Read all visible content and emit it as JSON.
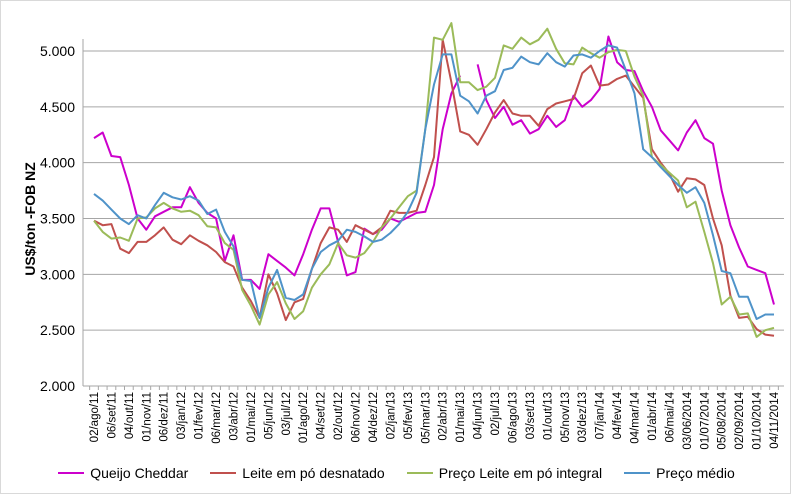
{
  "chart_data": {
    "type": "line",
    "title": "",
    "xlabel": "",
    "ylabel": "US$/ton -FOB NZ",
    "ylim": [
      2000,
      5000
    ],
    "yticks": [
      "2.000",
      "2.500",
      "3.000",
      "3.500",
      "4.000",
      "4.500",
      "5.000"
    ],
    "ytick_values": [
      2000,
      2500,
      3000,
      3500,
      4000,
      4500,
      5000
    ],
    "grid": true,
    "legend_position": "bottom",
    "x_tick_labels": [
      "02/ago/11",
      "06/set/11",
      "04/out/11",
      "01/nov/11",
      "06/dez/11",
      "03/jan/12",
      "01/fev/12",
      "06/mar/12",
      "03/abr/12",
      "01/mai/12",
      "05/jun/12",
      "03/jul/12",
      "01/ago/12",
      "04/set/12",
      "02/out/12",
      "06/nov/12",
      "04/dez/12",
      "02/jan/13",
      "05/fev/13",
      "05/mar/13",
      "02/abr/13",
      "01/mai/13",
      "04/jun/13",
      "02/jul/13",
      "06/ago/13",
      "03/set/13",
      "01/out/13",
      "05/nov/13",
      "03/dez/13",
      "07/jan/14",
      "04/fev/14",
      "04/mar/14",
      "01/abr/14",
      "06/mai/14",
      "03/06/2014",
      "01/07/2014",
      "05/08/2014",
      "02/09/2014",
      "01/10/2014",
      "04/11/2014"
    ],
    "series": [
      {
        "name": "Queijo Cheddar",
        "color": "#cc00cc",
        "values": [
          4220,
          4270,
          4060,
          4050,
          3800,
          3500,
          3400,
          3520,
          3560,
          3600,
          3600,
          3780,
          3640,
          3550,
          3500,
          3120,
          3350,
          2950,
          2950,
          2870,
          3180,
          3120,
          3060,
          2990,
          3180,
          3400,
          3590,
          3590,
          3290,
          2990,
          3020,
          3410,
          3360,
          3400,
          3500,
          3470,
          3510,
          3550,
          3560,
          3800,
          4300,
          4620,
          4780,
          null,
          4880,
          4560,
          4400,
          4500,
          4340,
          4380,
          4260,
          4300,
          4420,
          4320,
          4380,
          4600,
          4500,
          4560,
          4660,
          5130,
          4900,
          4830,
          4820,
          4640,
          4500,
          4290,
          4200,
          4110,
          4270,
          4380,
          4220,
          4170,
          3750,
          3440,
          3240,
          3070,
          3040,
          3010,
          2730
        ]
      },
      {
        "name": "Leite em pó desnatado",
        "color": "#c0504d",
        "values": [
          3480,
          3440,
          3450,
          3230,
          3190,
          3290,
          3290,
          3350,
          3420,
          3310,
          3270,
          3350,
          3300,
          3260,
          3200,
          3110,
          3070,
          2880,
          2760,
          2610,
          3000,
          2830,
          2590,
          2750,
          2780,
          3050,
          3280,
          3420,
          3400,
          3290,
          3440,
          3400,
          3360,
          3420,
          3570,
          3550,
          3550,
          3570,
          3800,
          4050,
          5100,
          4720,
          4280,
          4250,
          4160,
          4300,
          4450,
          4560,
          4440,
          4420,
          4420,
          4330,
          4480,
          4530,
          4550,
          4570,
          4800,
          4870,
          4690,
          4700,
          4750,
          4780,
          4680,
          4580,
          4120,
          4000,
          3900,
          3740,
          3860,
          3850,
          3800,
          3500,
          3260,
          2810,
          2610,
          2620,
          2510,
          2460,
          2450
        ]
      },
      {
        "name": "Preço Leite em pó integral",
        "color": "#9bbb59",
        "values": [
          3480,
          3380,
          3320,
          3330,
          3300,
          3500,
          3510,
          3590,
          3640,
          3590,
          3560,
          3570,
          3530,
          3430,
          3420,
          3280,
          3220,
          2860,
          2720,
          2550,
          2820,
          2930,
          2740,
          2600,
          2670,
          2880,
          3000,
          3090,
          3280,
          3170,
          3150,
          3190,
          3290,
          3420,
          3500,
          3600,
          3700,
          3750,
          4300,
          5120,
          5100,
          5250,
          4720,
          4720,
          4650,
          4680,
          4760,
          5050,
          5020,
          5120,
          5060,
          5100,
          5200,
          5020,
          4890,
          4880,
          5030,
          4980,
          4940,
          4990,
          5010,
          5000,
          4770,
          4600,
          4050,
          3980,
          3910,
          3840,
          3600,
          3650,
          3380,
          3100,
          2730,
          2800,
          2640,
          2650,
          2440,
          2500,
          2520
        ]
      },
      {
        "name": "Preço médio",
        "color": "#4f93c9",
        "values": [
          3720,
          3660,
          3580,
          3500,
          3450,
          3530,
          3500,
          3620,
          3730,
          3690,
          3670,
          3700,
          3660,
          3540,
          3580,
          3380,
          3250,
          2950,
          2940,
          2610,
          2880,
          3040,
          2790,
          2770,
          2820,
          3050,
          3200,
          3260,
          3300,
          3400,
          3380,
          3340,
          3290,
          3310,
          3370,
          3450,
          3560,
          3730,
          4300,
          4700,
          4970,
          4970,
          4600,
          4550,
          4440,
          4600,
          4640,
          4830,
          4850,
          4950,
          4900,
          4880,
          4980,
          4900,
          4860,
          4960,
          4970,
          4940,
          5000,
          5050,
          5030,
          4830,
          4620,
          4120,
          4050,
          3960,
          3880,
          3800,
          3730,
          3780,
          3640,
          3350,
          3030,
          3010,
          2800,
          2800,
          2600,
          2640,
          2640
        ]
      }
    ]
  }
}
